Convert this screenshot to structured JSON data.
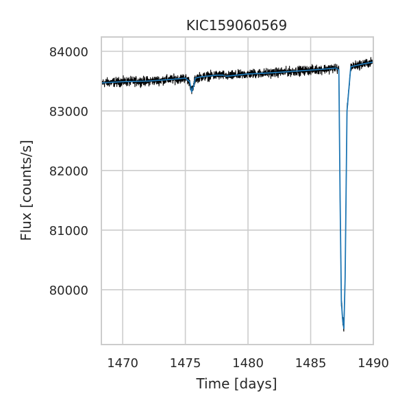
{
  "chart_data": {
    "type": "line",
    "title": "KIC159060569",
    "xlabel": "Time [days]",
    "ylabel": "Flux [counts/s]",
    "xlim": [
      1468.3,
      1490.0
    ],
    "ylim": [
      79080,
      84240
    ],
    "xticks": [
      1470,
      1475,
      1480,
      1485,
      1490
    ],
    "yticks": [
      80000,
      81000,
      82000,
      83000,
      84000
    ],
    "grid": true,
    "data_gap": [
      1478.1,
      1478.2
    ],
    "series": [
      {
        "color": "#000000",
        "style": "noisy-raw",
        "x": [
          1468.3,
          1470.0,
          1472.0,
          1474.0,
          1475.0,
          1475.35,
          1475.5,
          1475.65,
          1475.8,
          1476.2,
          1477.5,
          1478.0,
          1478.2,
          1480.0,
          1482.0,
          1484.0,
          1486.0,
          1487.0,
          1487.25,
          1487.35,
          1487.45,
          1487.55,
          1487.65,
          1487.75,
          1487.9,
          1488.2,
          1489.0,
          1490.0
        ],
        "y": [
          83470,
          83490,
          83500,
          83530,
          83550,
          83490,
          83320,
          83410,
          83550,
          83570,
          83600,
          83600,
          83580,
          83620,
          83640,
          83670,
          83700,
          83720,
          83690,
          81500,
          79800,
          79500,
          79350,
          80200,
          83000,
          83740,
          83780,
          83820
        ]
      },
      {
        "color": "#1f77b4",
        "style": "smoothed",
        "x": [
          1468.3,
          1470.0,
          1472.0,
          1474.0,
          1475.0,
          1475.35,
          1475.5,
          1475.65,
          1475.8,
          1476.2,
          1477.5,
          1478.0,
          1478.2,
          1480.0,
          1482.0,
          1484.0,
          1486.0,
          1487.0,
          1487.25,
          1487.35,
          1487.45,
          1487.55,
          1487.65,
          1487.75,
          1487.9,
          1488.2,
          1489.0,
          1490.0
        ],
        "y": [
          83470,
          83490,
          83500,
          83530,
          83550,
          83490,
          83320,
          83410,
          83550,
          83570,
          83600,
          83600,
          83580,
          83620,
          83640,
          83670,
          83700,
          83720,
          83690,
          81500,
          79800,
          79500,
          79350,
          80200,
          83000,
          83740,
          83780,
          83820
        ]
      }
    ]
  }
}
